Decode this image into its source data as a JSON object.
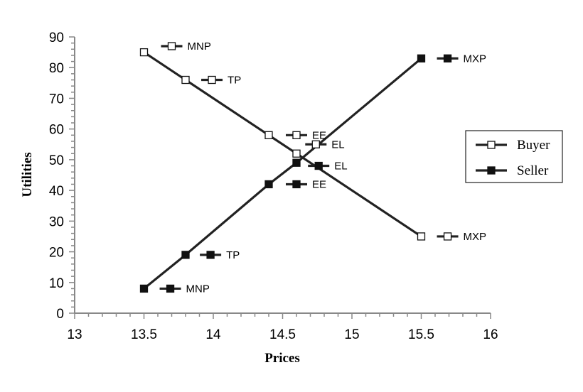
{
  "chart_data": {
    "type": "line",
    "title": "",
    "xlabel": "Prices",
    "ylabel": "Utilities",
    "xlim": [
      13,
      16
    ],
    "ylim": [
      0,
      90
    ],
    "x_ticks": [
      "13",
      "13.5",
      "14",
      "14.5",
      "15",
      "15.5",
      "16"
    ],
    "y_ticks": [
      "0",
      "10",
      "20",
      "30",
      "40",
      "50",
      "60",
      "70",
      "80",
      "90"
    ],
    "grid": false,
    "legend_position": "right",
    "series": [
      {
        "name": "Buyer",
        "marker": "open-square",
        "color": "#222222",
        "points": [
          {
            "x": 13.5,
            "y": 85
          },
          {
            "x": 13.8,
            "y": 76
          },
          {
            "x": 14.4,
            "y": 58
          },
          {
            "x": 14.6,
            "y": 52
          },
          {
            "x": 15.5,
            "y": 25
          }
        ]
      },
      {
        "name": "Seller",
        "marker": "filled-square",
        "color": "#222222",
        "points": [
          {
            "x": 13.5,
            "y": 8
          },
          {
            "x": 13.8,
            "y": 19
          },
          {
            "x": 14.4,
            "y": 42
          },
          {
            "x": 14.6,
            "y": 49
          },
          {
            "x": 15.5,
            "y": 83
          }
        ]
      }
    ],
    "annotations": [
      {
        "label": "MNP",
        "marker": "open-square",
        "x": 13.7,
        "y": 87
      },
      {
        "label": "TP",
        "marker": "open-square",
        "x": 13.99,
        "y": 76
      },
      {
        "label": "EE",
        "marker": "open-square",
        "x": 14.6,
        "y": 58
      },
      {
        "label": "EL",
        "marker": "open-square",
        "x": 14.74,
        "y": 55
      },
      {
        "label": "MXP",
        "marker": "open-square",
        "x": 15.69,
        "y": 25
      },
      {
        "label": "MXP",
        "marker": "filled-square",
        "x": 15.69,
        "y": 83
      },
      {
        "label": "EL",
        "marker": "filled-square",
        "x": 14.76,
        "y": 48
      },
      {
        "label": "EE",
        "marker": "filled-square",
        "x": 14.6,
        "y": 42
      },
      {
        "label": "TP",
        "marker": "filled-square",
        "x": 13.98,
        "y": 19
      },
      {
        "label": "MNP",
        "marker": "filled-square",
        "x": 13.69,
        "y": 8
      }
    ]
  }
}
